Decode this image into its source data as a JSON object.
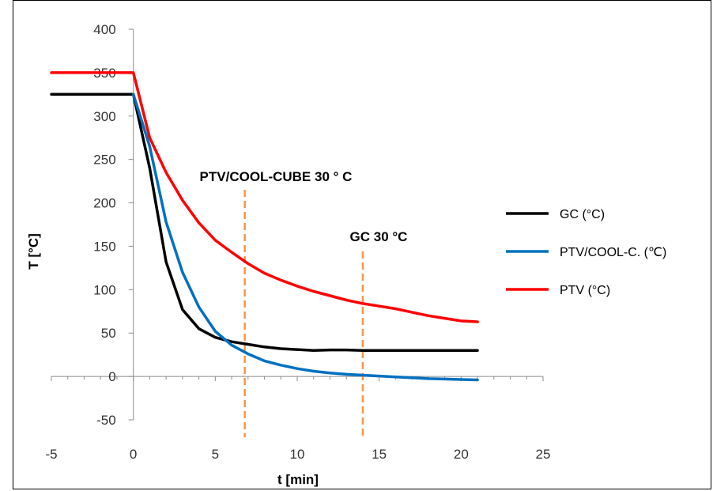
{
  "chart_data": {
    "type": "line",
    "xlabel": "t [min]",
    "ylabel": "T [°C]",
    "xlim": [
      -5,
      25
    ],
    "ylim": [
      -50,
      400
    ],
    "x_ticks": [
      -5,
      0,
      5,
      10,
      15,
      20,
      25
    ],
    "y_ticks": [
      -50,
      0,
      50,
      100,
      150,
      200,
      250,
      300,
      350,
      400
    ],
    "grid": false,
    "legend_position": "right",
    "series": [
      {
        "name": "GC (°C)",
        "color": "#000000",
        "x": [
          -5,
          0,
          1,
          2,
          3,
          4,
          5,
          6,
          7,
          8,
          9,
          10,
          11,
          12,
          13,
          14,
          15,
          16,
          17,
          18,
          19,
          20,
          21
        ],
        "y": [
          325,
          325,
          240,
          132,
          77,
          55,
          45,
          40,
          37,
          34,
          32,
          31,
          30,
          30.5,
          30.5,
          30,
          30,
          30,
          30,
          30,
          30,
          30,
          30
        ]
      },
      {
        "name": "PTV/COOL-C. (℃)",
        "color": "#0070c0",
        "x": [
          0,
          1,
          2,
          3,
          4,
          5,
          6,
          7,
          8,
          9,
          10,
          11,
          12,
          13,
          14,
          15,
          16,
          17,
          18,
          19,
          20,
          21
        ],
        "y": [
          325,
          265,
          178,
          120,
          80,
          52,
          36,
          26,
          18,
          13,
          9,
          6,
          4,
          2.5,
          1.5,
          0.5,
          -0.5,
          -1.5,
          -2.5,
          -3,
          -3.5,
          -4
        ]
      },
      {
        "name": "PTV (°C)",
        "color": "#ff0000",
        "x": [
          -5,
          0,
          1,
          2,
          3,
          4,
          5,
          6,
          7,
          8,
          9,
          10,
          11,
          12,
          13,
          14,
          15,
          16,
          17,
          18,
          19,
          20,
          21
        ],
        "y": [
          350,
          350,
          275,
          235,
          203,
          177,
          157,
          143,
          130,
          119,
          111,
          104,
          98,
          93,
          88,
          84,
          81,
          78,
          74,
          70,
          67,
          64,
          63
        ]
      }
    ],
    "annotations": [
      {
        "label": "PTV/COOL-CUBE 30 ° C",
        "x": 6.8,
        "color": "#f79646"
      },
      {
        "label": "GC 30 °C",
        "x": 14,
        "color": "#f79646"
      }
    ]
  }
}
